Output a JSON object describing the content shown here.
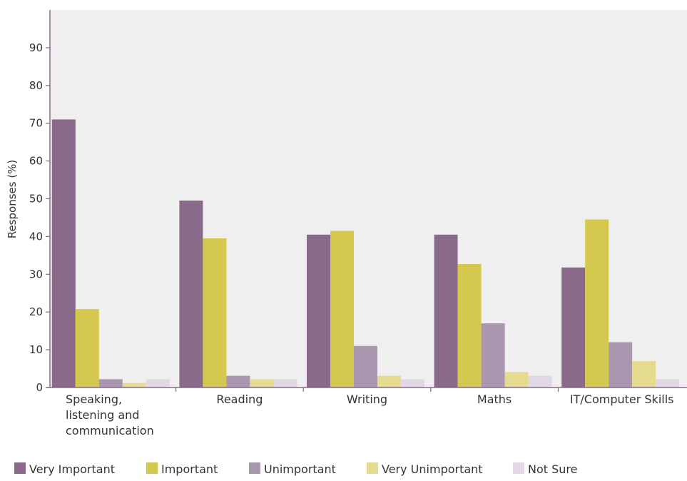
{
  "chart_data": {
    "type": "bar",
    "title": "",
    "xlabel": "",
    "ylabel": "Responses (%)",
    "ylim": [
      0,
      100
    ],
    "yticks": [
      0,
      10,
      20,
      30,
      40,
      50,
      60,
      70,
      80,
      90
    ],
    "grid": false,
    "legend_position": "bottom",
    "categories": [
      [
        "Speaking,",
        "listening and",
        "communication"
      ],
      [
        "Reading"
      ],
      [
        "Writing"
      ],
      [
        "Maths"
      ],
      [
        "IT/Computer Skills"
      ]
    ],
    "series": [
      {
        "name": "Very Important",
        "color": "#896a8a",
        "values": [
          71,
          49.5,
          40.5,
          40.5,
          31.8
        ]
      },
      {
        "name": "Important",
        "color": "#d5c84f",
        "values": [
          20.8,
          39.5,
          41.5,
          32.7,
          44.5
        ]
      },
      {
        "name": "Unimportant",
        "color": "#ab96b0",
        "values": [
          2.2,
          3.1,
          11,
          17,
          12
        ]
      },
      {
        "name": "Very Unimportant",
        "color": "#e4db90",
        "values": [
          1.2,
          2.2,
          3.1,
          4.1,
          7
        ]
      },
      {
        "name": "Not Sure",
        "color": "#e0d8e3",
        "values": [
          2.2,
          2.2,
          2.2,
          3.1,
          2.2
        ]
      }
    ],
    "plot_background": "#efefef",
    "axis_color": "#896a8a"
  }
}
